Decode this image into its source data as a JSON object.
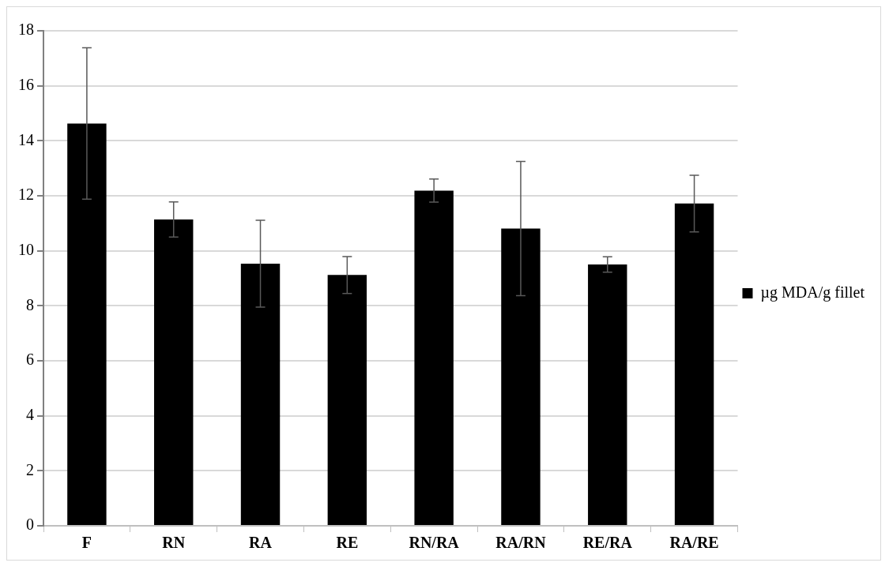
{
  "chart_data": {
    "type": "bar",
    "categories": [
      "F",
      "RN",
      "RA",
      "RE",
      "RN/RA",
      "RA/RN",
      "RE/RA",
      "RA/RE"
    ],
    "series": [
      {
        "name": "µg MDA/g fillet",
        "color": "#000000",
        "values": [
          14.63,
          11.14,
          9.53,
          9.12,
          12.19,
          10.81,
          9.5,
          11.72
        ],
        "errors": [
          2.75,
          0.64,
          1.58,
          0.67,
          0.42,
          2.44,
          0.28,
          1.03
        ]
      }
    ],
    "ylim": [
      0,
      18
    ],
    "yticks": [
      0,
      2,
      4,
      6,
      8,
      10,
      12,
      14,
      16,
      18
    ],
    "grid": "y",
    "legend": "right"
  }
}
